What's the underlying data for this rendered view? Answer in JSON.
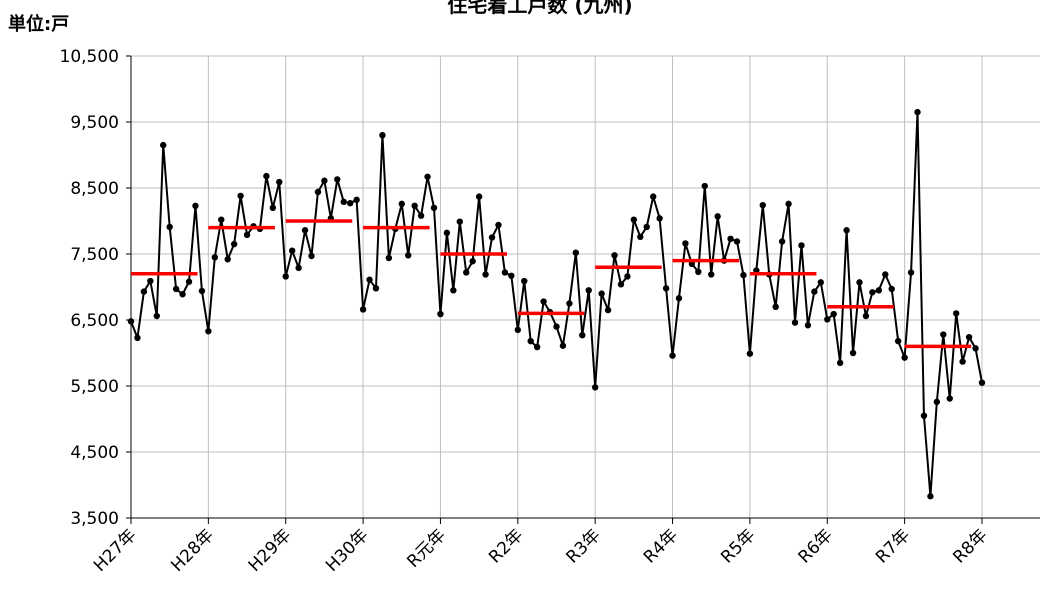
{
  "chart_data": {
    "type": "line",
    "title": "住宅着工戸数 (九州)",
    "unit_label": "単位:戸",
    "x": [
      0,
      1,
      2,
      3,
      4,
      5,
      6,
      7,
      8,
      9,
      10,
      11,
      12,
      13,
      14,
      15,
      16,
      17,
      18,
      19,
      20,
      21,
      22,
      23,
      24,
      25,
      26,
      27,
      28,
      29,
      30,
      31,
      32,
      33,
      34,
      35,
      36,
      37,
      38,
      39,
      40,
      41,
      42,
      43,
      44,
      45,
      46,
      47,
      48,
      49,
      50,
      51,
      52,
      53,
      54,
      55,
      56,
      57,
      58,
      59,
      60,
      61,
      62,
      63,
      64,
      65,
      66,
      67,
      68,
      69,
      70,
      71,
      72,
      73,
      74,
      75,
      76,
      77,
      78,
      79,
      80,
      81,
      82,
      83,
      84,
      85,
      86,
      87,
      88,
      89,
      90,
      91,
      92,
      93,
      94,
      95,
      96,
      97,
      98,
      99,
      100,
      101,
      102,
      103,
      104,
      105,
      106,
      107,
      108,
      109,
      110,
      111,
      112,
      113,
      114,
      115,
      116,
      117,
      118,
      119,
      120,
      121,
      122,
      123,
      124,
      125,
      126,
      127,
      128,
      129,
      130,
      131,
      132
    ],
    "series": [
      {
        "color": "#000000",
        "values": [
          6480,
          6230,
          6930,
          7090,
          6560,
          9150,
          7910,
          6970,
          6890,
          7080,
          8230,
          6940,
          6330,
          7450,
          8020,
          7420,
          7650,
          8380,
          7790,
          7920,
          7880,
          8680,
          8200,
          8590,
          7160,
          7550,
          7290,
          7860,
          7470,
          8440,
          8610,
          8040,
          8630,
          8290,
          8270,
          8320,
          6660,
          7110,
          6980,
          9300,
          7440,
          7880,
          8260,
          7480,
          8230,
          8080,
          8670,
          8200,
          6590,
          7820,
          6950,
          7990,
          7220,
          7390,
          8370,
          7190,
          7750,
          7940,
          7220,
          7170,
          6350,
          7090,
          6180,
          6090,
          6780,
          6620,
          6400,
          6110,
          6750,
          7520,
          6270,
          6950,
          5480,
          6900,
          6650,
          7480,
          7040,
          7160,
          8020,
          7760,
          7910,
          8370,
          8040,
          6980,
          5960,
          6830,
          7660,
          7350,
          7230,
          8530,
          7190,
          8070,
          7400,
          7730,
          7690,
          7180,
          5990,
          7250,
          8240,
          7190,
          6700,
          7690,
          8260,
          6460,
          7630,
          6420,
          6930,
          7070,
          6510,
          6590,
          5850,
          7860,
          6000,
          7070,
          6560,
          6920,
          6950,
          7190,
          6970,
          6180,
          5930,
          7220,
          9650,
          5050,
          3830,
          5260,
          6280,
          5310,
          6600,
          5870,
          6240,
          6070,
          5550
        ]
      }
    ],
    "annual_averages": {
      "color": "#ff0000",
      "x": [
        0,
        12,
        24,
        36,
        48,
        60,
        72,
        84,
        96,
        108,
        120
      ],
      "values": [
        7200,
        7900,
        8000,
        7900,
        7500,
        6600,
        7300,
        7400,
        7200,
        6700,
        6100
      ]
    },
    "xlim": [
      0,
      141
    ],
    "xticks": [
      {
        "value": 0,
        "label": "H27年"
      },
      {
        "value": 12,
        "label": "H28年"
      },
      {
        "value": 24,
        "label": "H29年"
      },
      {
        "value": 36,
        "label": "H30年"
      },
      {
        "value": 48,
        "label": "R元年"
      },
      {
        "value": 60,
        "label": "R2年"
      },
      {
        "value": 72,
        "label": "R3年"
      },
      {
        "value": 84,
        "label": "R4年"
      },
      {
        "value": 96,
        "label": "R5年"
      },
      {
        "value": 108,
        "label": "R6年"
      },
      {
        "value": 120,
        "label": "R7年"
      },
      {
        "value": 132,
        "label": "R8年"
      }
    ],
    "ylim": [
      3500,
      10500
    ],
    "yticks": [
      {
        "value": 3500,
        "label": "3,500"
      },
      {
        "value": 4500,
        "label": "4,500"
      },
      {
        "value": 5500,
        "label": "5,500"
      },
      {
        "value": 6500,
        "label": "6,500"
      },
      {
        "value": 7500,
        "label": "7,500"
      },
      {
        "value": 8500,
        "label": "8,500"
      },
      {
        "value": 9500,
        "label": "9,500"
      },
      {
        "value": 10500,
        "label": "10,500"
      }
    ],
    "grid": true
  }
}
